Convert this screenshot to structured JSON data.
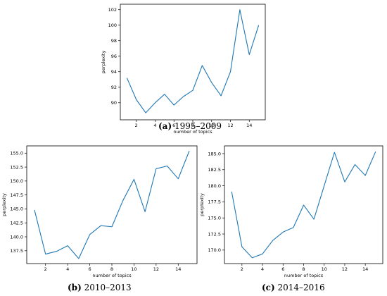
{
  "chart_data": [
    {
      "type": "line",
      "caption_letter": "(a)",
      "caption_text": "1995–2009",
      "xlabel": "number of topics",
      "ylabel": "perplexity",
      "x": [
        1,
        2,
        3,
        4,
        5,
        6,
        7,
        8,
        9,
        10,
        11,
        12,
        13,
        14,
        15
      ],
      "series": [
        {
          "values": [
            93.2,
            90.4,
            88.7,
            90.0,
            91.1,
            89.7,
            90.8,
            91.6,
            94.8,
            92.6,
            90.9,
            94.0,
            102.0,
            96.2,
            100.0
          ]
        }
      ],
      "color": "#1f77b4",
      "xlim": [
        0.3,
        15.7
      ],
      "ylim": [
        87.8,
        102.7
      ],
      "xticks": [
        2,
        4,
        6,
        8,
        10,
        12,
        14
      ],
      "xtick_labels": [
        "2",
        "4",
        "6",
        "8",
        "10",
        "12",
        "14"
      ],
      "yticks": [
        90,
        92,
        94,
        96,
        98,
        100,
        102
      ],
      "ytick_labels": [
        "90",
        "92",
        "94",
        "96",
        "98",
        "100",
        "102"
      ]
    },
    {
      "type": "line",
      "caption_letter": "(b)",
      "caption_text": "2010–2013",
      "xlabel": "number of topics",
      "ylabel": "perplexity",
      "x": [
        1,
        2,
        3,
        4,
        5,
        6,
        7,
        8,
        9,
        10,
        11,
        12,
        13,
        14,
        15
      ],
      "series": [
        {
          "values": [
            144.8,
            136.9,
            137.4,
            138.4,
            136.1,
            140.4,
            142.0,
            141.8,
            146.5,
            150.3,
            144.5,
            152.2,
            152.7,
            150.4,
            155.4
          ]
        }
      ],
      "color": "#1f77b4",
      "xlim": [
        0.3,
        15.7
      ],
      "ylim": [
        135.2,
        156.3
      ],
      "xticks": [
        2,
        4,
        6,
        8,
        10,
        12,
        14
      ],
      "xtick_labels": [
        "2",
        "4",
        "6",
        "8",
        "10",
        "12",
        "14"
      ],
      "yticks": [
        137.5,
        140.0,
        142.5,
        145.0,
        147.5,
        150.0,
        152.5,
        155.0
      ],
      "ytick_labels": [
        "137.5",
        "140.0",
        "142.5",
        "145.0",
        "147.5",
        "150.0",
        "152.5",
        "155.0"
      ]
    },
    {
      "type": "line",
      "caption_letter": "(c)",
      "caption_text": "2014–2016",
      "xlabel": "number of topics",
      "ylabel": "perplexity",
      "x": [
        1,
        2,
        3,
        4,
        5,
        6,
        7,
        8,
        9,
        10,
        11,
        12,
        13,
        14,
        15
      ],
      "series": [
        {
          "values": [
            179.1,
            170.5,
            168.8,
            169.4,
            171.5,
            172.8,
            173.5,
            177.0,
            174.8,
            180.0,
            185.2,
            180.6,
            183.3,
            181.6,
            185.3
          ]
        }
      ],
      "color": "#1f77b4",
      "xlim": [
        0.3,
        15.7
      ],
      "ylim": [
        167.9,
        186.2
      ],
      "xticks": [
        2,
        4,
        6,
        8,
        10,
        12,
        14
      ],
      "xtick_labels": [
        "2",
        "4",
        "6",
        "8",
        "10",
        "12",
        "14"
      ],
      "yticks": [
        170.0,
        172.5,
        175.0,
        177.5,
        180.0,
        182.5,
        185.0
      ],
      "ytick_labels": [
        "170.0",
        "172.5",
        "175.0",
        "177.5",
        "180.0",
        "182.5",
        "185.0"
      ]
    }
  ]
}
